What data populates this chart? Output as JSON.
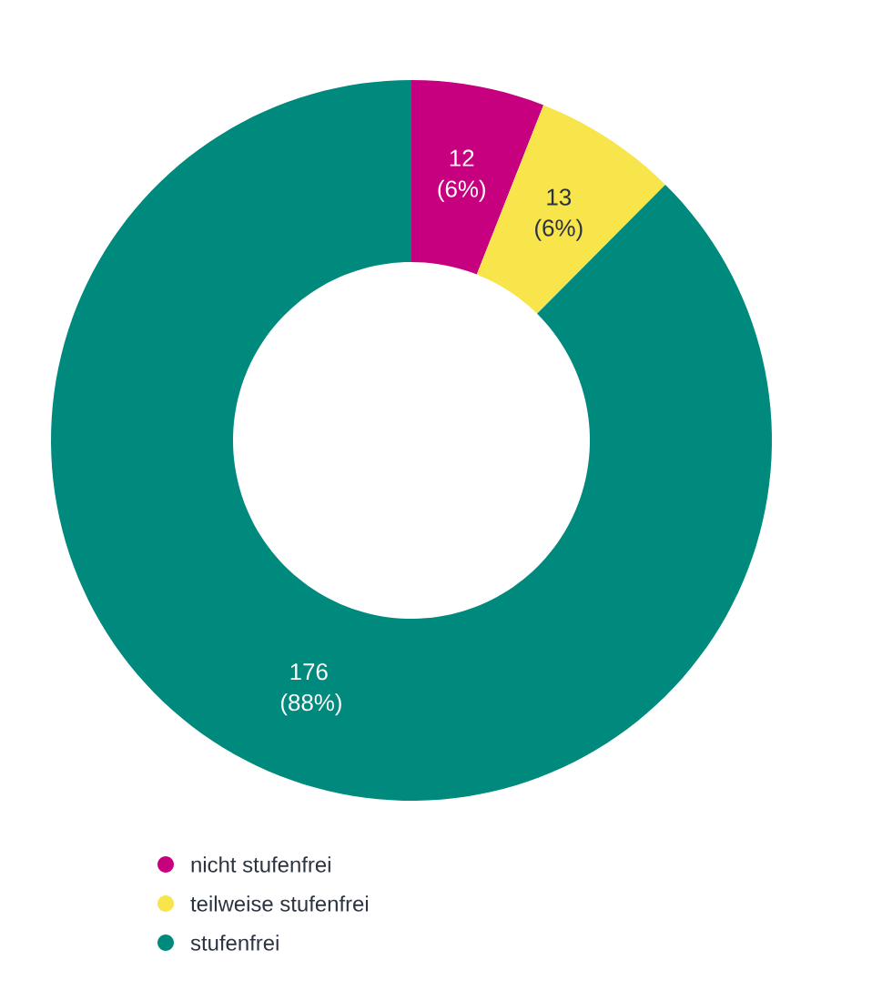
{
  "chart_data": {
    "type": "donut",
    "categories": [
      "nicht stufenfrei",
      "teilweise stufenfrei",
      "stufenfrei"
    ],
    "values": [
      12,
      13,
      176
    ],
    "colors": [
      "#c6007e",
      "#f8e44b",
      "#008a7e"
    ],
    "value_labels": [
      "12 (6%)",
      "13 (6%)",
      "176 (88%)"
    ],
    "legend": "bottom left"
  }
}
